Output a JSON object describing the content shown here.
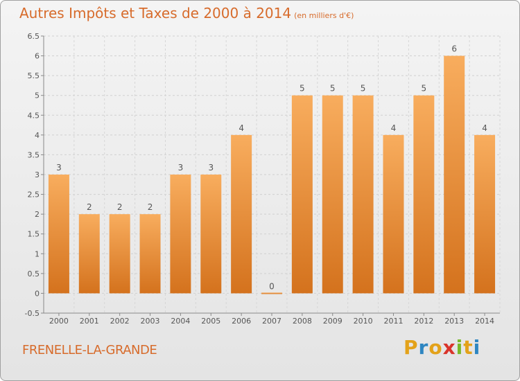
{
  "title": "Autres Impôts et Taxes de 2000 à 2014",
  "subtitle": "(en milliers d'€)",
  "commune": "FRENELLE-LA-GRANDE",
  "logo": {
    "letters": [
      "P",
      "r",
      "o",
      "x",
      "i",
      "t",
      "i"
    ],
    "colors": [
      "#e3a21a",
      "#2e86c1",
      "#e3a21a",
      "#d9342b",
      "#7ab929",
      "#e3a21a",
      "#2e86c1"
    ]
  },
  "colors": {
    "bar_top": "#f8ad5e",
    "bar_bottom": "#d4721d",
    "title": "#d76b2b"
  },
  "chart_data": {
    "type": "bar",
    "categories": [
      "2000",
      "2001",
      "2002",
      "2003",
      "2004",
      "2005",
      "2006",
      "2007",
      "2008",
      "2009",
      "2010",
      "2011",
      "2012",
      "2013",
      "2014"
    ],
    "values": [
      3,
      2,
      2,
      2,
      3,
      3,
      4,
      0,
      5,
      5,
      5,
      4,
      5,
      6,
      4
    ],
    "data_labels": [
      "3",
      "2",
      "2",
      "2",
      "3",
      "3",
      "4",
      "0",
      "5",
      "5",
      "5",
      "4",
      "5",
      "6",
      "4"
    ],
    "ylim": [
      -0.5,
      6.5
    ],
    "yticks": [
      -0.5,
      0,
      0.5,
      1,
      1.5,
      2,
      2.5,
      3,
      3.5,
      4,
      4.5,
      5,
      5.5,
      6,
      6.5
    ],
    "ytick_labels": [
      "-0.5",
      "0",
      "0.5",
      "1",
      "1.5",
      "2",
      "2.5",
      "3",
      "3.5",
      "4",
      "4.5",
      "5",
      "5.5",
      "6",
      "6.5"
    ],
    "grid": true,
    "title": "Autres Impôts et Taxes de 2000 à 2014",
    "xlabel": "",
    "ylabel": ""
  }
}
